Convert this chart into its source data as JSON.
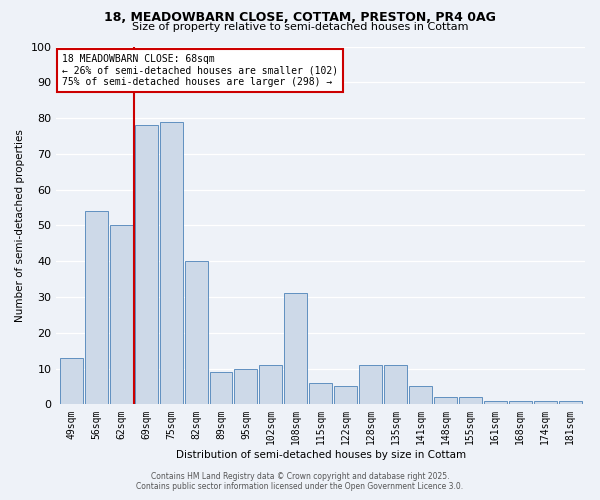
{
  "title1": "18, MEADOWBARN CLOSE, COTTAM, PRESTON, PR4 0AG",
  "title2": "Size of property relative to semi-detached houses in Cottam",
  "xlabel": "Distribution of semi-detached houses by size in Cottam",
  "ylabel": "Number of semi-detached properties",
  "categories": [
    "49sqm",
    "56sqm",
    "62sqm",
    "69sqm",
    "75sqm",
    "82sqm",
    "89sqm",
    "95sqm",
    "102sqm",
    "108sqm",
    "115sqm",
    "122sqm",
    "128sqm",
    "135sqm",
    "141sqm",
    "148sqm",
    "155sqm",
    "161sqm",
    "168sqm",
    "174sqm",
    "181sqm"
  ],
  "values": [
    13,
    54,
    50,
    78,
    79,
    40,
    9,
    10,
    11,
    31,
    6,
    5,
    11,
    11,
    5,
    2,
    2,
    1,
    1,
    1,
    1
  ],
  "bar_color": "#cdd9e8",
  "bar_edge_color": "#6090c0",
  "red_line_index": 3,
  "annotation_title": "18 MEADOWBARN CLOSE: 68sqm",
  "annotation_line2": "← 26% of semi-detached houses are smaller (102)",
  "annotation_line3": "75% of semi-detached houses are larger (298) →",
  "annotation_box_color": "#ffffff",
  "annotation_box_edge": "#cc0000",
  "ylim": [
    0,
    100
  ],
  "background_color": "#eef2f8",
  "grid_color": "#ffffff",
  "footer1": "Contains HM Land Registry data © Crown copyright and database right 2025.",
  "footer2": "Contains public sector information licensed under the Open Government Licence 3.0."
}
